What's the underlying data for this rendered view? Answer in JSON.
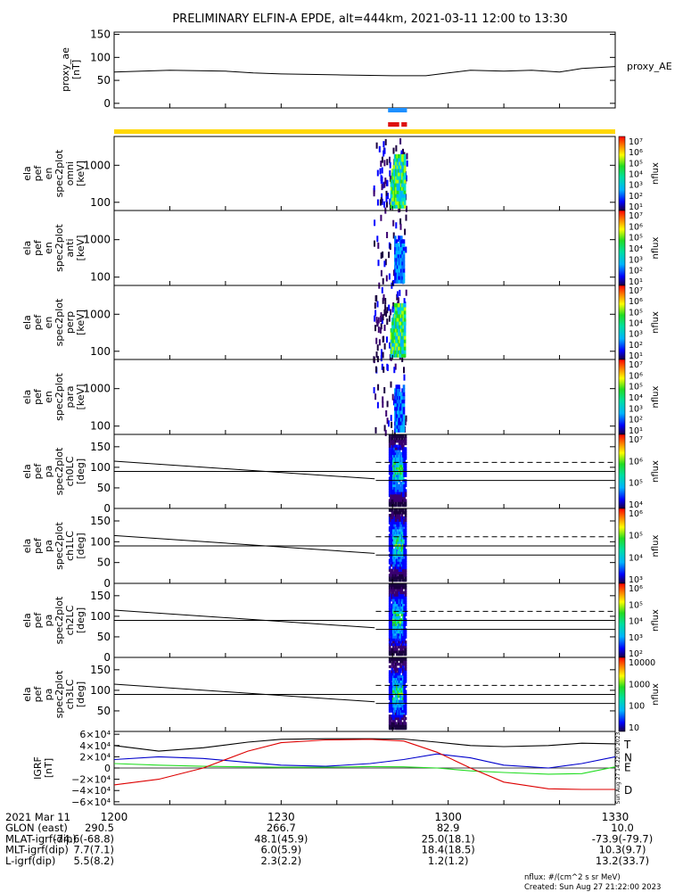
{
  "title": "PRELIMINARY ELFIN-A EPDE, alt=444km, 2021-03-11 12:00 to 13:30",
  "colors": {
    "fgm_blue": "#1e90ff",
    "fgm_red": "#dd1111",
    "sci_bar": "#ffd700",
    "igrf_T": "#000000",
    "igrf_N": "#0000cc",
    "igrf_E": "#22dd22",
    "igrf_D": "#dd0000"
  },
  "chart_data": [
    {
      "type": "line",
      "id": "proxy_ae",
      "ylabel_lines": [
        "proxy_ae",
        "[nT]"
      ],
      "legend": "proxy_AE",
      "ylim": [
        -10,
        155
      ],
      "yticks": [
        0,
        50,
        100,
        150
      ],
      "x_minutes": [
        0,
        10,
        20,
        25,
        30,
        40,
        50,
        56,
        60,
        64,
        70,
        75,
        80,
        84,
        90
      ],
      "values": [
        68,
        72,
        70,
        66,
        64,
        62,
        60,
        60,
        66,
        72,
        70,
        72,
        68,
        76,
        80
      ]
    },
    {
      "type": "heatmap",
      "id": "omni",
      "ylabel_lines": [
        "ela",
        "pef",
        "en",
        "spec2plot",
        "omni",
        "[keV]"
      ],
      "yscale": "log",
      "yticks": [
        100,
        1000
      ],
      "cbar_ticks": [
        "10⁷",
        "10⁶",
        "10⁵",
        "10⁴",
        "10³",
        "10²",
        "10¹"
      ],
      "cbar_label": "nflux",
      "x_start_min": 46.5,
      "x_end_min": 52.5
    },
    {
      "type": "heatmap",
      "id": "anti",
      "ylabel_lines": [
        "ela",
        "pef",
        "en",
        "spec2plot",
        "anti",
        "[keV]"
      ],
      "yscale": "log",
      "yticks": [
        100,
        1000
      ],
      "cbar_ticks": [
        "10⁷",
        "10⁶",
        "10⁵",
        "10⁴",
        "10³",
        "10²",
        "10¹"
      ],
      "cbar_label": "nflux"
    },
    {
      "type": "heatmap",
      "id": "perp",
      "ylabel_lines": [
        "ela",
        "pef",
        "en",
        "spec2plot",
        "perp",
        "[keV]"
      ],
      "yscale": "log",
      "yticks": [
        100,
        1000
      ],
      "cbar_ticks": [
        "10⁷",
        "10⁶",
        "10⁵",
        "10⁴",
        "10³",
        "10²",
        "10¹"
      ],
      "cbar_label": "nflux"
    },
    {
      "type": "heatmap",
      "id": "para",
      "ylabel_lines": [
        "ela",
        "pef",
        "en",
        "spec2plot",
        "para",
        "[keV]"
      ],
      "yscale": "log",
      "yticks": [
        100,
        1000
      ],
      "cbar_ticks": [
        "10⁷",
        "10⁶",
        "10⁵",
        "10⁴",
        "10³",
        "10²",
        "10¹"
      ],
      "cbar_label": "nflux"
    },
    {
      "type": "heatmap",
      "id": "ch0LC",
      "ylabel_lines": [
        "ela",
        "pef",
        "pa",
        "spec2plot",
        "ch0LC",
        "[deg]"
      ],
      "ylim": [
        0,
        180
      ],
      "yticks": [
        0,
        50,
        100,
        150
      ],
      "cbar_ticks": [
        "10⁷",
        "10⁶",
        "10⁵",
        "10⁴"
      ],
      "cbar_label": "nflux",
      "lc_deg": 68,
      "alc_deg": 112
    },
    {
      "type": "heatmap",
      "id": "ch1LC",
      "ylabel_lines": [
        "ela",
        "pef",
        "pa",
        "spec2plot",
        "ch1LC",
        "[deg]"
      ],
      "ylim": [
        0,
        180
      ],
      "yticks": [
        0,
        50,
        100,
        150
      ],
      "cbar_ticks": [
        "10⁶",
        "10⁵",
        "10⁴",
        "10³"
      ],
      "cbar_label": "nflux",
      "lc_deg": 68,
      "alc_deg": 112
    },
    {
      "type": "heatmap",
      "id": "ch2LC",
      "ylabel_lines": [
        "ela",
        "pef",
        "pa",
        "spec2plot",
        "ch2LC",
        "[deg]"
      ],
      "ylim": [
        0,
        180
      ],
      "yticks": [
        0,
        50,
        100,
        150
      ],
      "cbar_ticks": [
        "10⁶",
        "10⁵",
        "10⁴",
        "10³",
        "10²"
      ],
      "cbar_label": "nflux",
      "lc_deg": 68,
      "alc_deg": 112
    },
    {
      "type": "heatmap",
      "id": "ch3LC",
      "ylabel_lines": [
        "ela",
        "pef",
        "pa",
        "spec2plot",
        "ch3LC",
        "[deg]"
      ],
      "ylim": [
        0,
        180
      ],
      "yticks": [
        50,
        100,
        150
      ],
      "cbar_ticks": [
        "10000",
        "1000",
        "100",
        "10"
      ],
      "cbar_label": "nflux",
      "lc_deg": 68,
      "alc_deg": 112
    },
    {
      "type": "line",
      "id": "igrf",
      "ylabel_lines": [
        "IGRF",
        "[nT]"
      ],
      "ylim": [
        -65000,
        65000
      ],
      "ytick_values": [
        60000,
        40000,
        20000,
        0,
        -20000,
        -40000,
        -60000
      ],
      "ytick_labels": [
        "6×10⁴",
        "4×10⁴",
        "2×10⁴",
        "0",
        "−2×10⁴",
        "−4×10⁴",
        "−6×10⁴"
      ],
      "series": [
        {
          "name": "T",
          "x_minutes": [
            0,
            8,
            16,
            24,
            30,
            38,
            46,
            52,
            58,
            64,
            70,
            78,
            84,
            90
          ],
          "values": [
            40000,
            30000,
            36000,
            46000,
            51000,
            52000,
            52000,
            51500,
            46000,
            40000,
            38000,
            40000,
            44000,
            43000
          ]
        },
        {
          "name": "N",
          "x_minutes": [
            0,
            8,
            16,
            24,
            30,
            38,
            46,
            52,
            58,
            64,
            70,
            78,
            84,
            90
          ],
          "values": [
            15000,
            20000,
            17000,
            10000,
            5000,
            3000,
            8000,
            15000,
            25000,
            18000,
            5000,
            0,
            8000,
            20000
          ]
        },
        {
          "name": "E",
          "x_minutes": [
            0,
            8,
            16,
            24,
            30,
            38,
            46,
            52,
            58,
            64,
            70,
            78,
            84,
            90
          ],
          "values": [
            8000,
            5000,
            3000,
            2000,
            1500,
            1500,
            2500,
            2000,
            0,
            -5000,
            -8000,
            -11000,
            -10000,
            2000
          ]
        },
        {
          "name": "D",
          "x_minutes": [
            0,
            8,
            16,
            24,
            30,
            38,
            46,
            52,
            58,
            64,
            70,
            78,
            84,
            90
          ],
          "values": [
            -30000,
            -20000,
            0,
            30000,
            45000,
            50000,
            51000,
            48000,
            28000,
            0,
            -25000,
            -37000,
            -38000,
            -38000
          ]
        }
      ],
      "sidebar_text": "Sun Aug 27 14:22:00 2023"
    }
  ],
  "orbit_table": {
    "times": [
      "1200",
      "1230",
      "1300",
      "1330"
    ],
    "rows": [
      {
        "label": "2021 Mar 11",
        "values": [
          "",
          "",
          "",
          ""
        ]
      },
      {
        "label": "GLON (east)",
        "values": [
          "290.5",
          "266.7",
          "82.9",
          "10.0"
        ]
      },
      {
        "label": "MLAT-igrf(dip)",
        "values": [
          "-74.6(-68.8)",
          "48.1(45.9)",
          "25.0(18.1)",
          "-73.9(-79.7)"
        ]
      },
      {
        "label": "MLT-igrf(dip)",
        "values": [
          "7.7(7.1)",
          "6.0(5.9)",
          "18.4(18.5)",
          "10.3(9.7)"
        ]
      },
      {
        "label": "L-igrf(dip)",
        "values": [
          "5.5(8.2)",
          "2.3(2.2)",
          "1.2(1.2)",
          "13.2(33.7)"
        ]
      }
    ]
  },
  "footer": {
    "units": "nflux: #/(cm^2 s sr MeV)",
    "created": "Created: Sun Aug 27 21:22:00 2023"
  }
}
